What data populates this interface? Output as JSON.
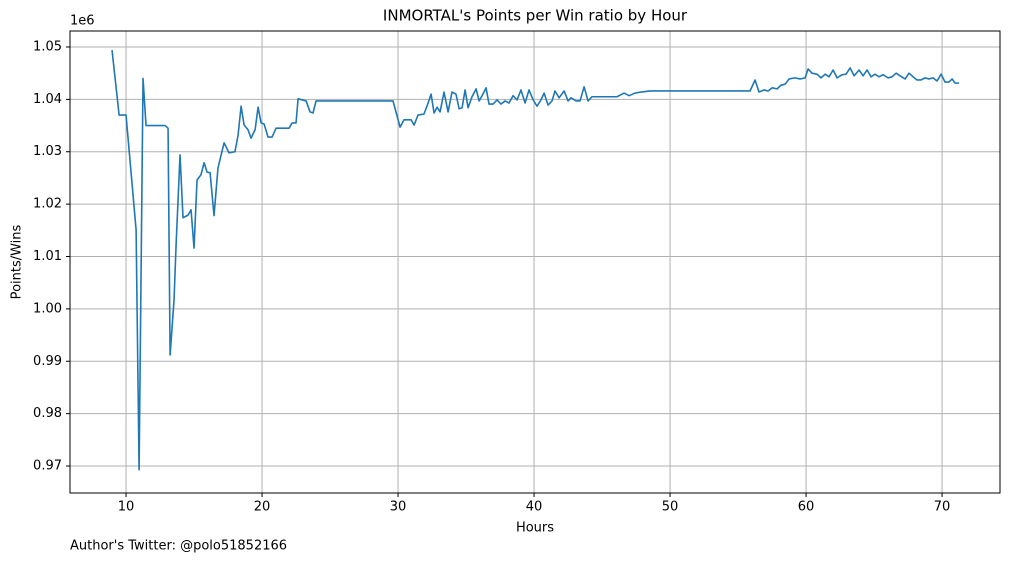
{
  "chart_data": {
    "type": "line",
    "title": "INMORTAL's Points per Win ratio by Hour",
    "x_label": "Hours",
    "y_label": "Points/Wins",
    "y_offset_label": "1e6",
    "footnote": "Author's Twitter: @polo51852166",
    "color": "#1f77b4",
    "grid": true,
    "x": [
      8.97,
      9.49,
      10,
      10.74,
      10.96,
      11.25,
      11.47,
      12.87,
      13.09,
      13.24,
      13.53,
      13.68,
      13.97,
      14.19,
      14.56,
      14.78,
      15.0,
      15.22,
      15.51,
      15.74,
      15.96,
      16.18,
      16.47,
      16.76,
      17.21,
      17.57,
      18.01,
      18.24,
      18.46,
      18.68,
      18.97,
      19.19,
      19.49,
      19.71,
      19.93,
      20.15,
      20.44,
      20.74,
      21.03,
      21.99,
      22.21,
      22.5,
      22.65,
      23.24,
      23.53,
      23.75,
      23.97,
      29.63,
      30.15,
      30.44,
      30.96,
      31.18,
      31.47,
      31.91,
      32.21,
      32.43,
      32.65,
      32.87,
      33.09,
      33.38,
      33.68,
      33.97,
      34.26,
      34.49,
      34.71,
      34.93,
      35.15,
      35.44,
      35.74,
      35.96,
      36.18,
      36.47,
      36.69,
      36.99,
      37.28,
      37.57,
      37.87,
      38.16,
      38.46,
      38.75,
      39.04,
      39.34,
      39.63,
      39.93,
      40.22,
      40.51,
      40.74,
      41.03,
      41.32,
      41.54,
      41.84,
      42.21,
      42.5,
      42.72,
      43.09,
      43.38,
      43.68,
      43.97,
      44.26,
      46.1,
      46.62,
      46.99,
      47.43,
      47.87,
      48.53,
      55.88,
      56.25,
      56.54,
      56.91,
      57.21,
      57.5,
      57.87,
      58.16,
      58.46,
      58.75,
      59.19,
      59.56,
      59.93,
      60.15,
      60.44,
      60.81,
      61.1,
      61.4,
      61.69,
      61.99,
      62.28,
      62.65,
      62.94,
      63.24,
      63.53,
      63.9,
      64.19,
      64.49,
      64.78,
      65.07,
      65.37,
      65.66,
      66.03,
      66.32,
      66.62,
      66.91,
      67.28,
      67.57,
      67.87,
      68.16,
      68.46,
      68.75,
      69.04,
      69.34,
      69.63,
      69.93,
      70.22,
      70.51,
      70.74,
      70.96,
      71.25
    ],
    "values": [
      1.0494,
      1.037,
      1.037,
      1.0151,
      0.9693,
      1.044,
      1.035,
      1.035,
      1.0345,
      0.9912,
      1.0017,
      1.0122,
      1.0294,
      1.0174,
      1.0179,
      1.0189,
      1.0116,
      1.0246,
      1.0256,
      1.0279,
      1.0261,
      1.026,
      1.0178,
      1.0269,
      1.0317,
      1.0298,
      1.03,
      1.0332,
      1.0387,
      1.0351,
      1.0342,
      1.0326,
      1.0342,
      1.0385,
      1.0355,
      1.0353,
      1.0328,
      1.0328,
      1.0345,
      1.0345,
      1.0355,
      1.0355,
      1.0401,
      1.0397,
      1.0376,
      1.0374,
      1.0397,
      1.0397,
      1.0347,
      1.0361,
      1.0361,
      1.0351,
      1.037,
      1.0372,
      1.0393,
      1.041,
      1.0374,
      1.0385,
      1.0376,
      1.0414,
      1.0376,
      1.0414,
      1.041,
      1.0382,
      1.0384,
      1.0418,
      1.0384,
      1.0405,
      1.042,
      1.0397,
      1.0407,
      1.0422,
      1.0391,
      1.0391,
      1.0399,
      1.0391,
      1.0397,
      1.0393,
      1.0407,
      1.0399,
      1.0418,
      1.0393,
      1.0418,
      1.0399,
      1.0387,
      1.0399,
      1.0412,
      1.0389,
      1.0397,
      1.0416,
      1.0403,
      1.0416,
      1.0397,
      1.0403,
      1.0397,
      1.0397,
      1.0424,
      1.0397,
      1.0405,
      1.0405,
      1.0412,
      1.0407,
      1.0412,
      1.0414,
      1.0416,
      1.0416,
      1.0437,
      1.0414,
      1.0418,
      1.0416,
      1.0422,
      1.042,
      1.0427,
      1.0429,
      1.0439,
      1.0441,
      1.0439,
      1.0441,
      1.0458,
      1.045,
      1.0448,
      1.0441,
      1.0448,
      1.0443,
      1.0456,
      1.0441,
      1.0447,
      1.0448,
      1.046,
      1.0445,
      1.0456,
      1.0445,
      1.0456,
      1.0443,
      1.0448,
      1.0443,
      1.0447,
      1.0441,
      1.0443,
      1.045,
      1.0445,
      1.0439,
      1.045,
      1.0443,
      1.0437,
      1.0437,
      1.0441,
      1.0439,
      1.0441,
      1.0435,
      1.0448,
      1.0433,
      1.0433,
      1.0439,
      1.0431,
      1.0431
    ],
    "xlim": [
      5.88,
      74.26
    ],
    "xticks": [
      10,
      20,
      30,
      40,
      50,
      60,
      70
    ],
    "ylim": [
      0.96485,
      1.05305
    ],
    "yticks": [
      0.97,
      0.98,
      0.99,
      {
        "value": 1,
        "label": "1.00"
      },
      1.01,
      1.02,
      1.03,
      1.04,
      1.05
    ]
  }
}
